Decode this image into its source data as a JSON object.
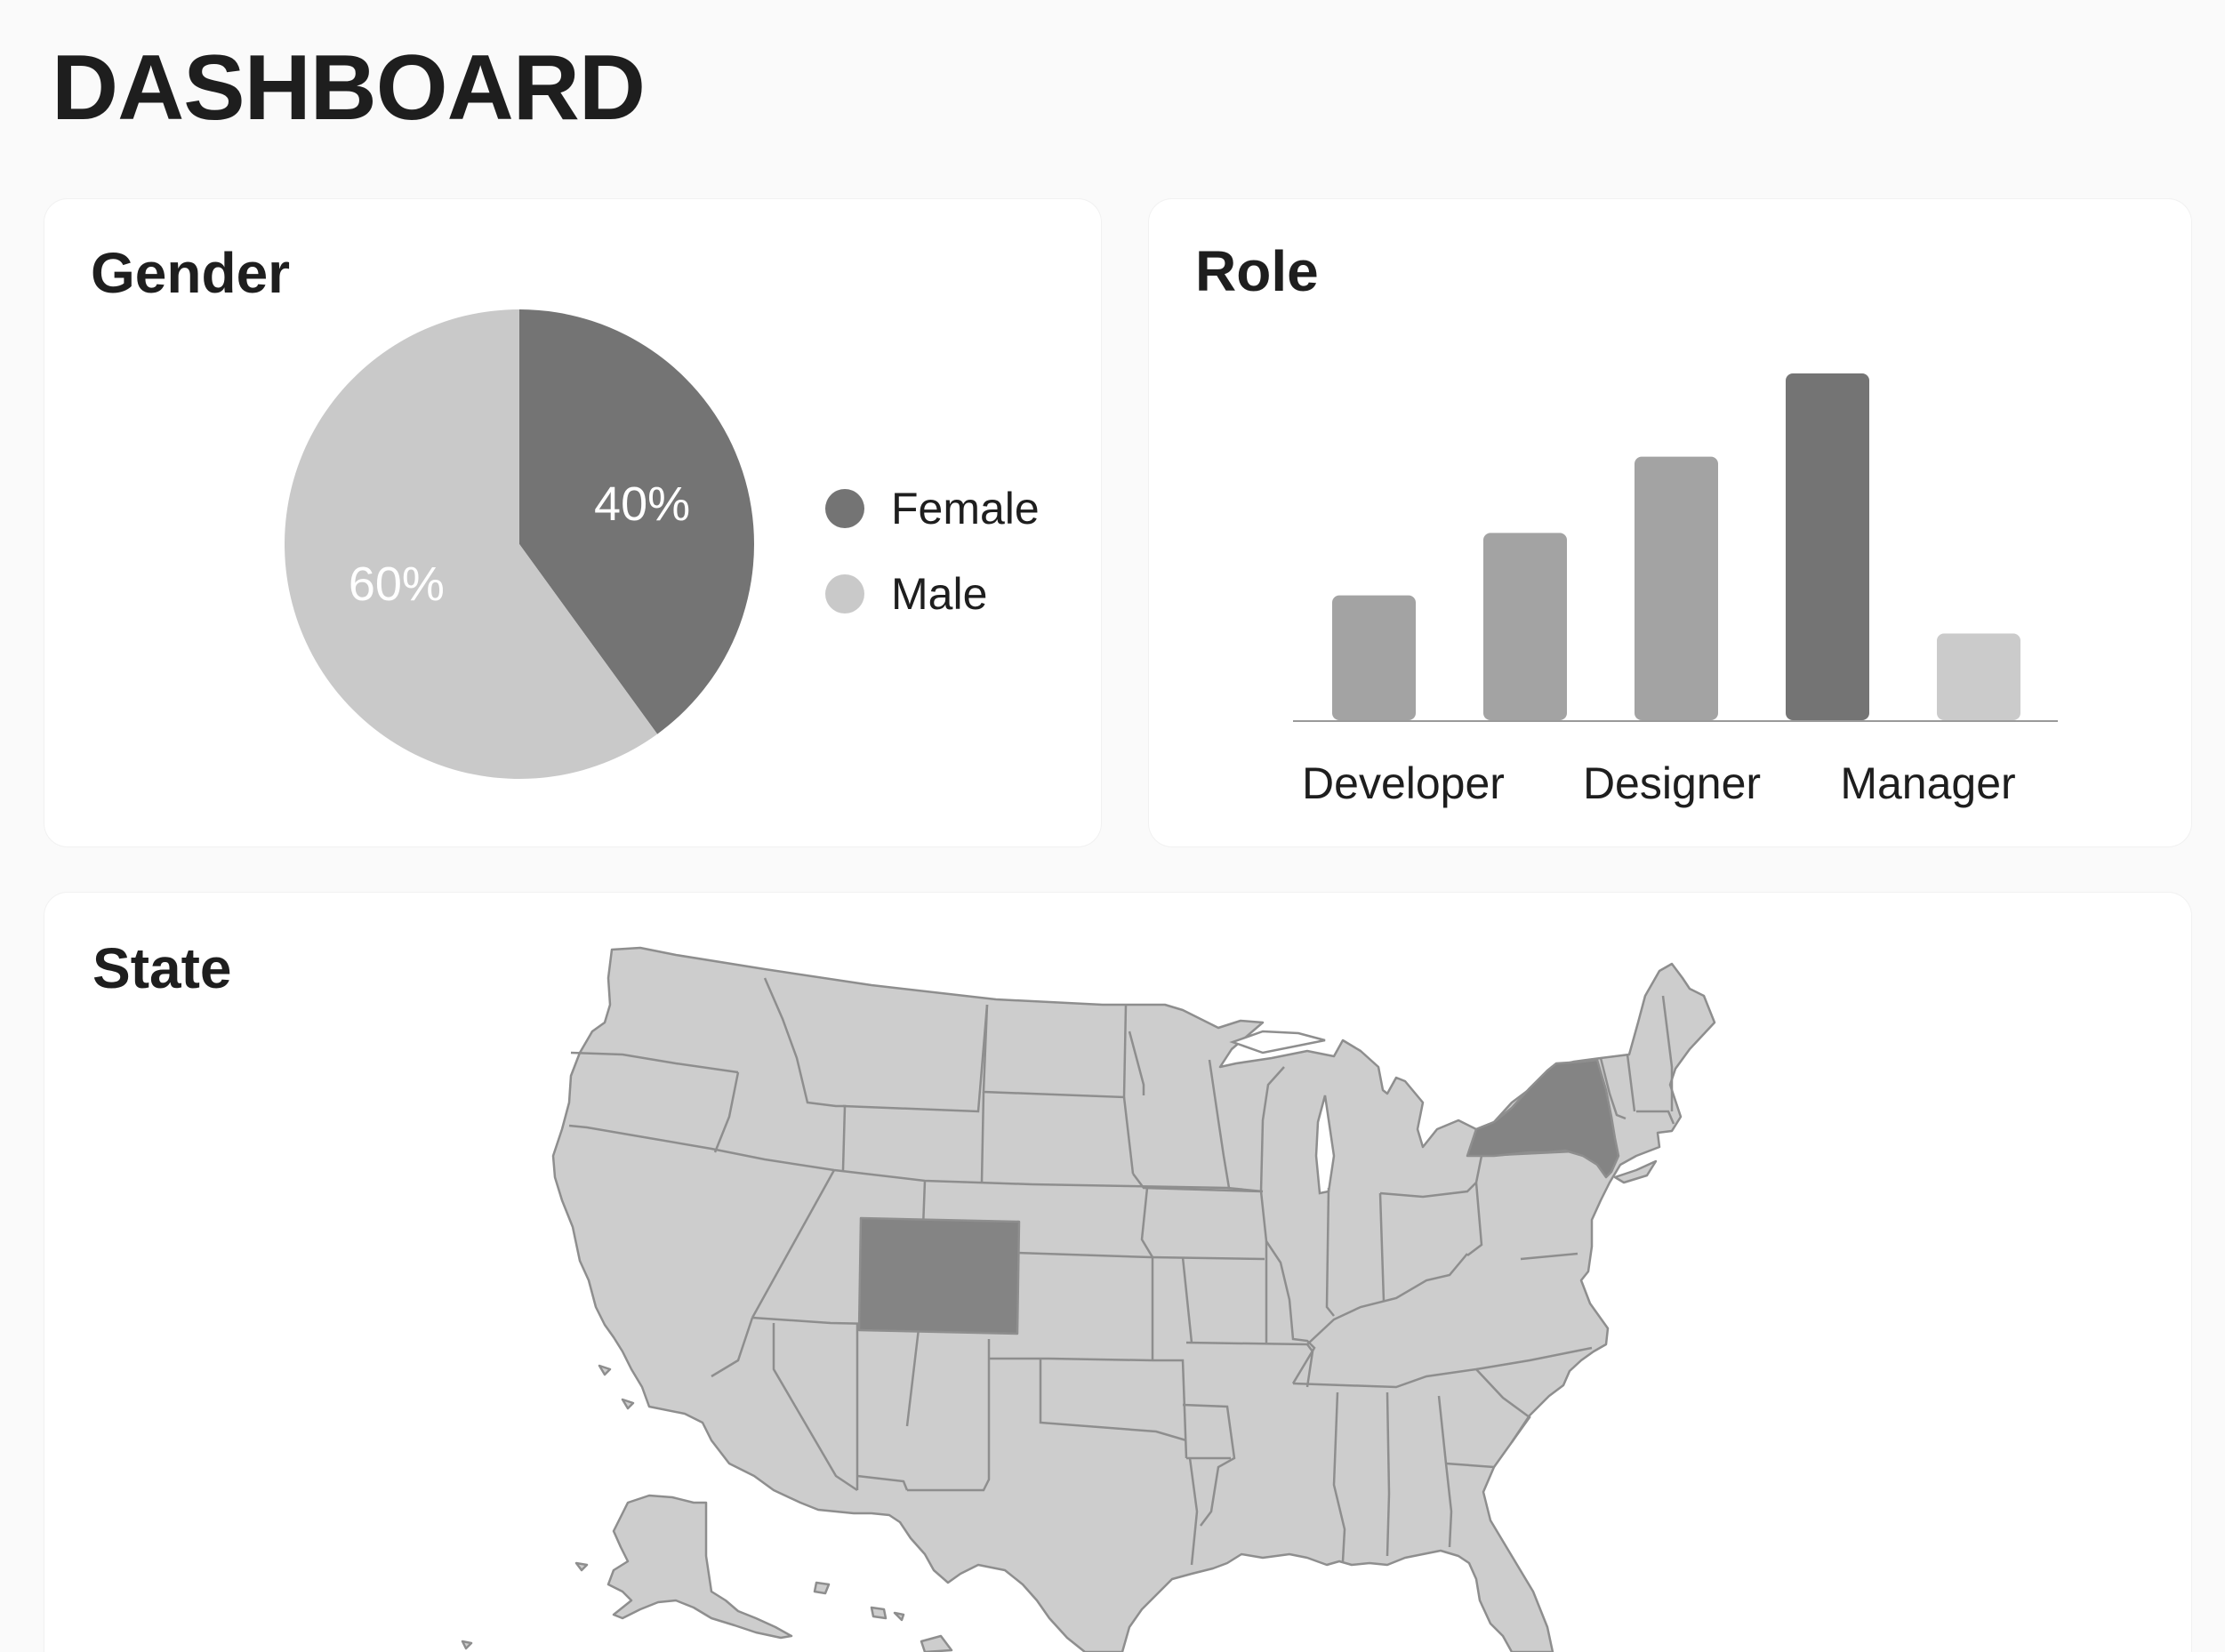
{
  "header": {
    "title": "DASHBOARD"
  },
  "gender": {
    "title": "Gender",
    "legend": [
      {
        "label": "Female",
        "color": "#747474"
      },
      {
        "label": "Male",
        "color": "#c9c9c9"
      }
    ]
  },
  "role": {
    "title": "Role"
  },
  "state": {
    "title": "State",
    "highlighted": [
      "New York",
      "Colorado"
    ],
    "colors": {
      "default": "#cdcdcd",
      "highlight": "#848484"
    }
  },
  "chart_data": [
    {
      "type": "pie",
      "title": "Gender",
      "slices": [
        {
          "label": "Female",
          "value": 40,
          "display": "40%",
          "color": "#747474"
        },
        {
          "label": "Male",
          "value": 60,
          "display": "60%",
          "color": "#c9c9c9"
        }
      ],
      "legend": "right"
    },
    {
      "type": "bar",
      "title": "Role",
      "bars": [
        {
          "value": 36,
          "color": "#a3a3a3"
        },
        {
          "value": 54,
          "color": "#a3a3a3"
        },
        {
          "value": 76,
          "color": "#a3a3a3"
        },
        {
          "value": 100,
          "color": "#747474"
        },
        {
          "value": 25,
          "color": "#cbcbcb"
        }
      ],
      "tick_labels": [
        "Developer",
        "Designer",
        "Manager"
      ],
      "ylim": [
        0,
        100
      ],
      "grid": false
    }
  ]
}
